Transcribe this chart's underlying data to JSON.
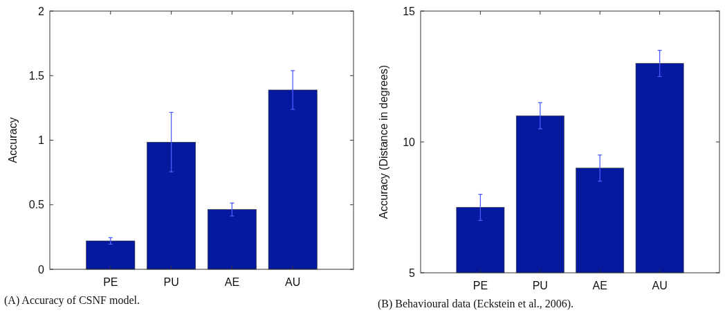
{
  "chart_data": [
    {
      "type": "bar",
      "categories": [
        "PE",
        "PU",
        "AE",
        "AU"
      ],
      "values": [
        0.22,
        0.985,
        0.463,
        1.389
      ],
      "errors": [
        0.025,
        0.23,
        0.05,
        0.15
      ],
      "color": "#04199e",
      "ylim": [
        0,
        2
      ],
      "yticks": [
        0,
        0.5,
        1,
        1.5,
        2
      ],
      "ylabel": "Accuracy",
      "annotations": [
        "(A) Accuracy of CSNF model."
      ]
    },
    {
      "type": "bar",
      "categories": [
        "PE",
        "PU",
        "AE",
        "AU"
      ],
      "values": [
        7.5,
        11,
        9,
        13
      ],
      "errors": [
        0.5,
        0.5,
        0.5,
        0.5
      ],
      "color": "#04199e",
      "ylim": [
        5,
        15
      ],
      "yticks": [
        5,
        10,
        15
      ],
      "ylabel": "Accuracy (Distance in degrees)",
      "annotations": [
        "(B) Behavioural data (Eckstein et al., 2006)."
      ]
    }
  ]
}
